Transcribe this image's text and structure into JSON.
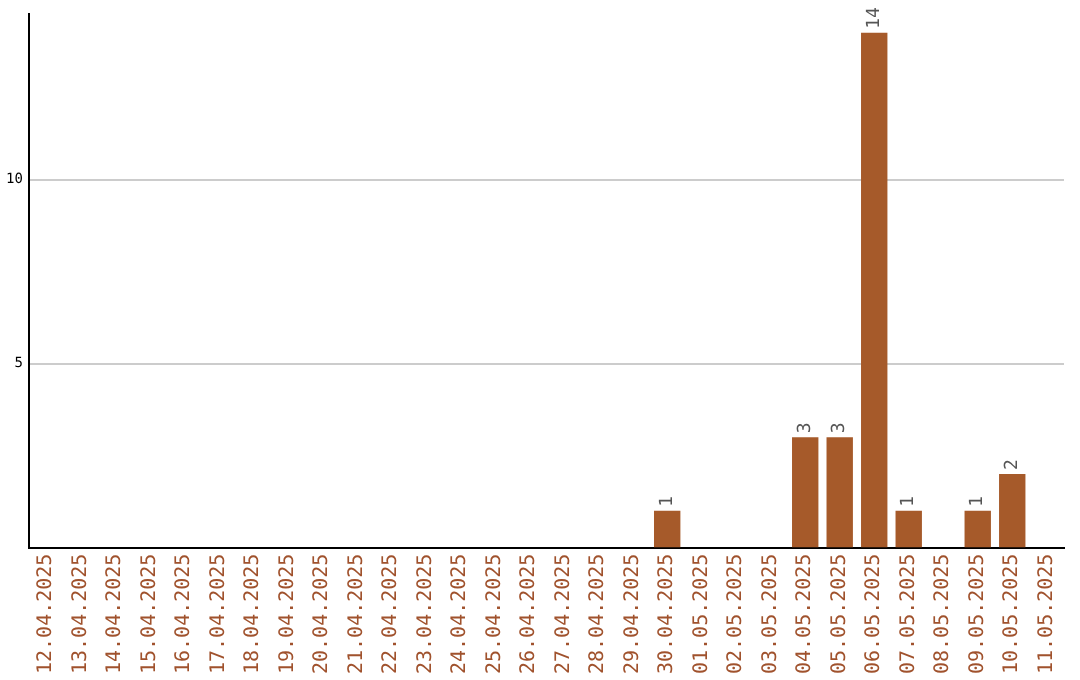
{
  "chart_data": {
    "type": "bar",
    "categories": [
      "12.04.2025",
      "13.04.2025",
      "14.04.2025",
      "15.04.2025",
      "16.04.2025",
      "17.04.2025",
      "18.04.2025",
      "19.04.2025",
      "20.04.2025",
      "21.04.2025",
      "22.04.2025",
      "23.04.2025",
      "24.04.2025",
      "25.04.2025",
      "26.04.2025",
      "27.04.2025",
      "28.04.2025",
      "29.04.2025",
      "30.04.2025",
      "01.05.2025",
      "02.05.2025",
      "03.05.2025",
      "04.05.2025",
      "05.05.2025",
      "06.05.2025",
      "07.05.2025",
      "08.05.2025",
      "09.05.2025",
      "10.05.2025",
      "11.05.2025"
    ],
    "values": [
      0,
      0,
      0,
      0,
      0,
      0,
      0,
      0,
      0,
      0,
      0,
      0,
      0,
      0,
      0,
      0,
      0,
      0,
      1,
      0,
      0,
      0,
      3,
      3,
      14,
      1,
      0,
      1,
      2,
      0
    ],
    "value_labels": [
      null,
      null,
      null,
      null,
      null,
      null,
      null,
      null,
      null,
      null,
      null,
      null,
      null,
      null,
      null,
      null,
      null,
      null,
      "1",
      null,
      null,
      null,
      "3",
      "3",
      "14",
      "1",
      null,
      "1",
      "2",
      null
    ],
    "color": "#a65a2a",
    "ylim": [
      0,
      14.5
    ],
    "yticks": [
      5,
      10
    ],
    "grid": "y",
    "legend": false
  }
}
